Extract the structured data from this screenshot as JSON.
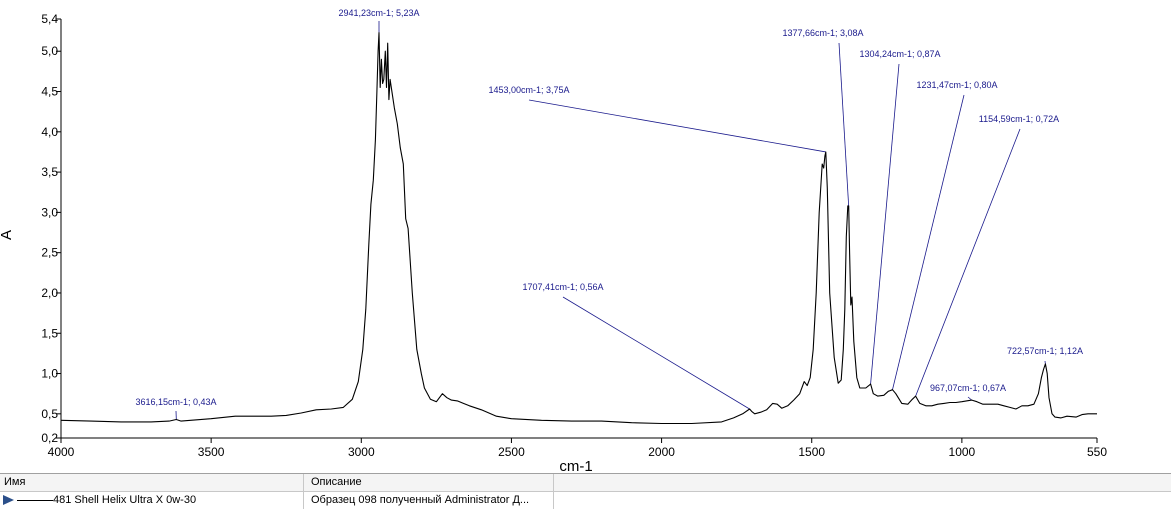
{
  "chart_data": {
    "type": "line",
    "xlabel": "cm-1",
    "ylabel": "A",
    "xlim": [
      4000,
      550
    ],
    "ylim": [
      0.2,
      5.4
    ],
    "x_reversed": true,
    "grid": false,
    "x_ticks": [
      4000,
      3500,
      3000,
      2500,
      2000,
      1500,
      1000,
      550
    ],
    "x_tick_labels": [
      "4000",
      "3500",
      "3000",
      "2500",
      "2000",
      "1500",
      "1000",
      "550"
    ],
    "y_ticks": [
      0.2,
      0.5,
      1.0,
      1.5,
      2.0,
      2.5,
      3.0,
      3.5,
      4.0,
      4.5,
      5.0,
      5.4
    ],
    "y_tick_labels": [
      "0,2",
      "0,5",
      "1,0",
      "1,5",
      "2,0",
      "2,5",
      "3,0",
      "3,5",
      "4,0",
      "4,5",
      "5,0",
      "5,4"
    ],
    "series": [
      {
        "name": "481 Shell Helix Ultra X 0w-30",
        "color": "#000000",
        "points": [
          [
            4000,
            0.42
          ],
          [
            3900,
            0.41
          ],
          [
            3800,
            0.4
          ],
          [
            3700,
            0.4
          ],
          [
            3640,
            0.41
          ],
          [
            3616,
            0.43
          ],
          [
            3600,
            0.41
          ],
          [
            3500,
            0.44
          ],
          [
            3420,
            0.47
          ],
          [
            3350,
            0.47
          ],
          [
            3300,
            0.47
          ],
          [
            3250,
            0.48
          ],
          [
            3200,
            0.51
          ],
          [
            3150,
            0.55
          ],
          [
            3100,
            0.56
          ],
          [
            3060,
            0.58
          ],
          [
            3030,
            0.68
          ],
          [
            3010,
            0.9
          ],
          [
            2995,
            1.3
          ],
          [
            2985,
            1.8
          ],
          [
            2975,
            2.6
          ],
          [
            2968,
            3.1
          ],
          [
            2960,
            3.4
          ],
          [
            2953,
            3.9
          ],
          [
            2948,
            4.5
          ],
          [
            2944,
            5.0
          ],
          [
            2941,
            5.23
          ],
          [
            2937,
            4.55
          ],
          [
            2933,
            4.9
          ],
          [
            2929,
            4.6
          ],
          [
            2925,
            4.65
          ],
          [
            2920,
            5.0
          ],
          [
            2916,
            4.55
          ],
          [
            2912,
            5.1
          ],
          [
            2908,
            4.4
          ],
          [
            2904,
            4.65
          ],
          [
            2898,
            4.5
          ],
          [
            2890,
            4.3
          ],
          [
            2880,
            4.1
          ],
          [
            2870,
            3.8
          ],
          [
            2860,
            3.6
          ],
          [
            2852,
            2.92
          ],
          [
            2844,
            2.8
          ],
          [
            2830,
            2.0
          ],
          [
            2815,
            1.3
          ],
          [
            2800,
            1.0
          ],
          [
            2790,
            0.82
          ],
          [
            2770,
            0.68
          ],
          [
            2750,
            0.65
          ],
          [
            2730,
            0.75
          ],
          [
            2715,
            0.7
          ],
          [
            2700,
            0.67
          ],
          [
            2680,
            0.66
          ],
          [
            2660,
            0.63
          ],
          [
            2640,
            0.6
          ],
          [
            2600,
            0.55
          ],
          [
            2550,
            0.47
          ],
          [
            2500,
            0.44
          ],
          [
            2400,
            0.42
          ],
          [
            2300,
            0.41
          ],
          [
            2200,
            0.41
          ],
          [
            2100,
            0.39
          ],
          [
            2000,
            0.38
          ],
          [
            1900,
            0.38
          ],
          [
            1800,
            0.4
          ],
          [
            1760,
            0.45
          ],
          [
            1730,
            0.5
          ],
          [
            1707,
            0.56
          ],
          [
            1700,
            0.53
          ],
          [
            1690,
            0.5
          ],
          [
            1670,
            0.52
          ],
          [
            1650,
            0.55
          ],
          [
            1630,
            0.63
          ],
          [
            1615,
            0.62
          ],
          [
            1600,
            0.57
          ],
          [
            1580,
            0.6
          ],
          [
            1560,
            0.67
          ],
          [
            1540,
            0.75
          ],
          [
            1525,
            0.9
          ],
          [
            1515,
            0.85
          ],
          [
            1505,
            0.95
          ],
          [
            1495,
            1.3
          ],
          [
            1485,
            2.0
          ],
          [
            1475,
            3.0
          ],
          [
            1465,
            3.6
          ],
          [
            1460,
            3.55
          ],
          [
            1456,
            3.7
          ],
          [
            1453,
            3.75
          ],
          [
            1448,
            3.3
          ],
          [
            1440,
            2.0
          ],
          [
            1425,
            1.2
          ],
          [
            1412,
            0.88
          ],
          [
            1402,
            0.92
          ],
          [
            1395,
            1.3
          ],
          [
            1390,
            1.8
          ],
          [
            1385,
            2.7
          ],
          [
            1380,
            3.08
          ],
          [
            1377,
            3.08
          ],
          [
            1374,
            2.5
          ],
          [
            1370,
            1.85
          ],
          [
            1366,
            1.95
          ],
          [
            1360,
            1.4
          ],
          [
            1350,
            0.95
          ],
          [
            1340,
            0.82
          ],
          [
            1320,
            0.82
          ],
          [
            1310,
            0.85
          ],
          [
            1304,
            0.87
          ],
          [
            1295,
            0.75
          ],
          [
            1280,
            0.72
          ],
          [
            1260,
            0.73
          ],
          [
            1245,
            0.78
          ],
          [
            1231,
            0.8
          ],
          [
            1220,
            0.75
          ],
          [
            1200,
            0.63
          ],
          [
            1180,
            0.62
          ],
          [
            1165,
            0.68
          ],
          [
            1154,
            0.72
          ],
          [
            1140,
            0.63
          ],
          [
            1120,
            0.6
          ],
          [
            1100,
            0.6
          ],
          [
            1080,
            0.62
          ],
          [
            1060,
            0.63
          ],
          [
            1040,
            0.64
          ],
          [
            1020,
            0.64
          ],
          [
            1000,
            0.65
          ],
          [
            985,
            0.66
          ],
          [
            967,
            0.67
          ],
          [
            950,
            0.65
          ],
          [
            930,
            0.62
          ],
          [
            900,
            0.62
          ],
          [
            880,
            0.62
          ],
          [
            860,
            0.6
          ],
          [
            840,
            0.58
          ],
          [
            820,
            0.56
          ],
          [
            800,
            0.6
          ],
          [
            780,
            0.6
          ],
          [
            760,
            0.62
          ],
          [
            745,
            0.75
          ],
          [
            735,
            0.95
          ],
          [
            728,
            1.05
          ],
          [
            722,
            1.12
          ],
          [
            716,
            1.0
          ],
          [
            710,
            0.7
          ],
          [
            700,
            0.5
          ],
          [
            690,
            0.46
          ],
          [
            670,
            0.45
          ],
          [
            650,
            0.47
          ],
          [
            620,
            0.46
          ],
          [
            600,
            0.49
          ],
          [
            580,
            0.5
          ],
          [
            560,
            0.5
          ],
          [
            550,
            0.5
          ]
        ]
      }
    ],
    "annotations": [
      {
        "text": "2941,23cm-1; 5,23A",
        "x": 2941,
        "y": 5.23
      },
      {
        "text": "1377,66cm-1; 3,08A",
        "x": 1377,
        "y": 3.08
      },
      {
        "text": "1304,24cm-1; 0,87A",
        "x": 1304,
        "y": 0.87
      },
      {
        "text": "1453,00cm-1; 3,75A",
        "x": 1453,
        "y": 3.75
      },
      {
        "text": "1231,47cm-1; 0,80A",
        "x": 1231,
        "y": 0.8
      },
      {
        "text": "1154,59cm-1; 0,72A",
        "x": 1154,
        "y": 0.72
      },
      {
        "text": "1707,41cm-1; 0,56A",
        "x": 1707,
        "y": 0.56
      },
      {
        "text": "722,57cm-1; 1,12A",
        "x": 722,
        "y": 1.12
      },
      {
        "text": "967,07cm-1; 0,67A",
        "x": 967,
        "y": 0.67
      },
      {
        "text": "3616,15cm-1; 0,43A",
        "x": 3616,
        "y": 0.43
      }
    ],
    "colors": {
      "line": "#000000",
      "annotation": "#1a1a8c"
    }
  },
  "legend_table": {
    "headers": {
      "name": "Имя",
      "description": "Описание"
    },
    "rows": [
      {
        "name": "481 Shell Helix Ultra X 0w-30",
        "description": "Образец 098 полученный Administrator Д..."
      }
    ]
  }
}
